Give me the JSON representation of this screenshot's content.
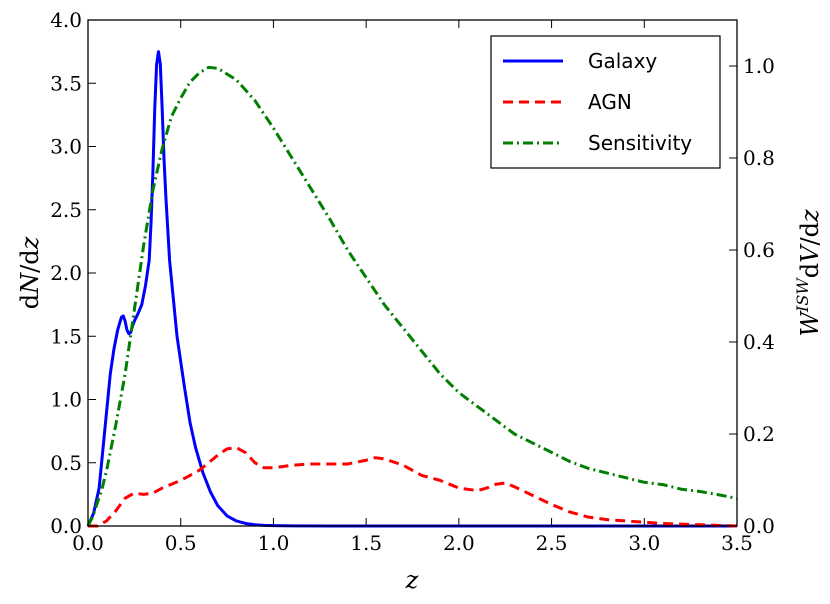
{
  "chart_data": {
    "type": "line",
    "title": "",
    "xlabel": "z",
    "ylabel_left": "dN/dz",
    "ylabel_right": "W^ISW dV/dz",
    "xlim": [
      0.0,
      3.5
    ],
    "ylim_left": [
      0.0,
      4.0
    ],
    "ylim_right": [
      0.0,
      1.1
    ],
    "x_ticks": [
      "0.0",
      "0.5",
      "1.0",
      "1.5",
      "2.0",
      "2.5",
      "3.0",
      "3.5"
    ],
    "y_left_ticks": [
      "0.0",
      "0.5",
      "1.0",
      "1.5",
      "2.0",
      "2.5",
      "3.0",
      "3.5",
      "4.0"
    ],
    "y_right_ticks": [
      "0.0",
      "0.2",
      "0.4",
      "0.6",
      "0.8",
      "1.0"
    ],
    "legend_position": "top-right",
    "series": [
      {
        "name": "Galaxy",
        "axis": "left",
        "color": "#0000ff",
        "style": "solid",
        "x": [
          0.0,
          0.03,
          0.06,
          0.08,
          0.1,
          0.12,
          0.14,
          0.16,
          0.18,
          0.19,
          0.2,
          0.21,
          0.22,
          0.23,
          0.24,
          0.25,
          0.27,
          0.29,
          0.31,
          0.33,
          0.34,
          0.35,
          0.36,
          0.37,
          0.38,
          0.39,
          0.4,
          0.41,
          0.42,
          0.43,
          0.44,
          0.46,
          0.48,
          0.5,
          0.52,
          0.55,
          0.58,
          0.62,
          0.66,
          0.7,
          0.75,
          0.8,
          0.85,
          0.9,
          0.95,
          1.0,
          1.1,
          1.3,
          1.6,
          2.0,
          2.5,
          3.0,
          3.5
        ],
        "values": [
          0.0,
          0.1,
          0.3,
          0.6,
          0.9,
          1.2,
          1.4,
          1.55,
          1.65,
          1.66,
          1.62,
          1.55,
          1.52,
          1.53,
          1.58,
          1.62,
          1.68,
          1.75,
          1.9,
          2.1,
          2.4,
          2.8,
          3.3,
          3.65,
          3.75,
          3.65,
          3.3,
          2.9,
          2.6,
          2.35,
          2.1,
          1.8,
          1.5,
          1.3,
          1.1,
          0.82,
          0.62,
          0.42,
          0.27,
          0.16,
          0.08,
          0.04,
          0.02,
          0.01,
          0.005,
          0.003,
          0.001,
          0.0,
          0.0,
          0.0,
          0.0,
          0.0,
          0.0
        ]
      },
      {
        "name": "AGN",
        "axis": "left",
        "color": "#ff0000",
        "style": "dashed",
        "x": [
          0.0,
          0.05,
          0.1,
          0.15,
          0.2,
          0.25,
          0.3,
          0.35,
          0.4,
          0.45,
          0.5,
          0.55,
          0.6,
          0.65,
          0.7,
          0.75,
          0.8,
          0.85,
          0.9,
          0.95,
          1.0,
          1.1,
          1.2,
          1.3,
          1.4,
          1.5,
          1.55,
          1.6,
          1.7,
          1.8,
          1.9,
          2.0,
          2.1,
          2.15,
          2.2,
          2.25,
          2.3,
          2.4,
          2.5,
          2.6,
          2.7,
          2.8,
          2.9,
          3.0,
          3.1,
          3.2,
          3.3,
          3.4,
          3.5
        ],
        "values": [
          0.0,
          0.0,
          0.04,
          0.12,
          0.22,
          0.26,
          0.25,
          0.26,
          0.3,
          0.33,
          0.36,
          0.4,
          0.44,
          0.5,
          0.56,
          0.61,
          0.62,
          0.58,
          0.5,
          0.46,
          0.46,
          0.48,
          0.49,
          0.49,
          0.49,
          0.52,
          0.54,
          0.53,
          0.48,
          0.4,
          0.36,
          0.3,
          0.28,
          0.3,
          0.33,
          0.34,
          0.31,
          0.24,
          0.17,
          0.11,
          0.07,
          0.05,
          0.04,
          0.03,
          0.02,
          0.015,
          0.01,
          0.005,
          0.0
        ]
      },
      {
        "name": "Sensitivity",
        "axis": "right",
        "color": "#007f00",
        "style": "dashdot",
        "x": [
          0.0,
          0.025,
          0.05,
          0.075,
          0.1,
          0.15,
          0.2,
          0.25,
          0.3,
          0.35,
          0.4,
          0.45,
          0.5,
          0.55,
          0.6,
          0.65,
          0.7,
          0.8,
          0.9,
          1.0,
          1.1,
          1.2,
          1.3,
          1.4,
          1.5,
          1.6,
          1.7,
          1.8,
          1.9,
          2.0,
          2.1,
          2.2,
          2.3,
          2.4,
          2.5,
          2.6,
          2.7,
          2.8,
          2.9,
          3.0,
          3.1,
          3.2,
          3.3,
          3.4,
          3.5
        ],
        "values": [
          0.0,
          0.02,
          0.05,
          0.08,
          0.12,
          0.22,
          0.33,
          0.47,
          0.61,
          0.73,
          0.82,
          0.89,
          0.93,
          0.965,
          0.985,
          0.997,
          0.995,
          0.97,
          0.925,
          0.865,
          0.8,
          0.735,
          0.67,
          0.6,
          0.54,
          0.48,
          0.43,
          0.38,
          0.33,
          0.29,
          0.26,
          0.23,
          0.2,
          0.18,
          0.16,
          0.14,
          0.125,
          0.115,
          0.105,
          0.095,
          0.09,
          0.08,
          0.075,
          0.068,
          0.06
        ]
      }
    ]
  }
}
